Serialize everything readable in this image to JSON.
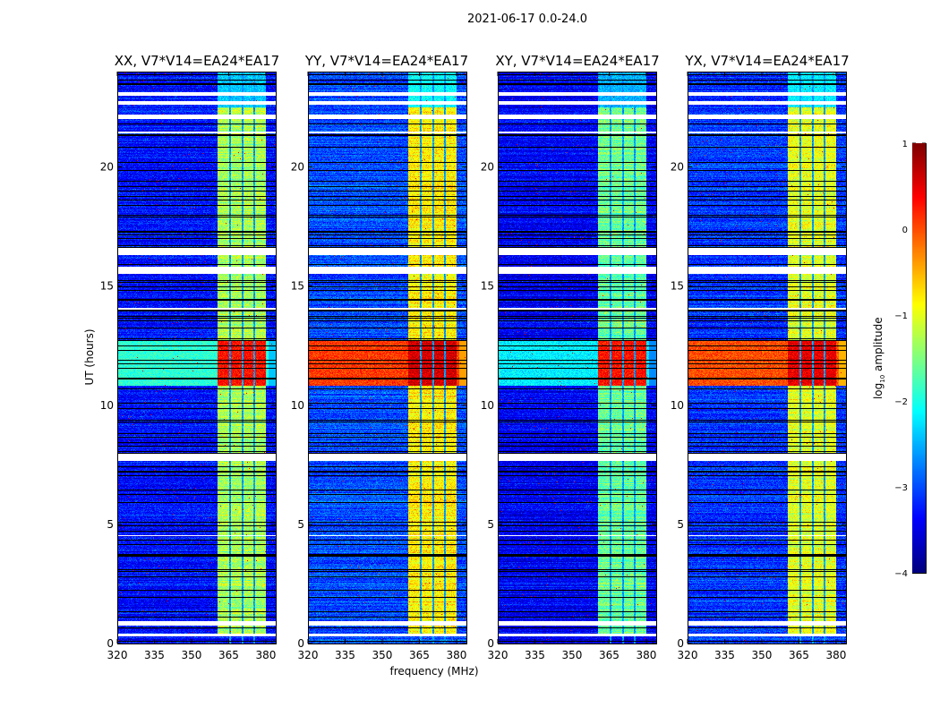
{
  "figure": {
    "suptitle": "2021-06-17 0.0-24.0"
  },
  "chart_data": {
    "type": "heatmap",
    "xlabel": "frequency (MHz)",
    "ylabel": "UT (hours)",
    "xlim": [
      320,
      384
    ],
    "ylim": [
      0,
      24
    ],
    "xticks": [
      320,
      335,
      350,
      365,
      380
    ],
    "yticks": [
      0,
      5,
      10,
      15,
      20
    ],
    "colormap": "jet",
    "colorbar": {
      "label_prefix": "log",
      "label_sub": "10",
      "label_suffix": " amplitude",
      "range": [
        -4,
        1
      ],
      "ticks": [
        1,
        0,
        -1,
        -2,
        -3,
        -4
      ],
      "tick_labels": [
        "1",
        "0",
        "−1",
        "−2",
        "−3",
        "−4"
      ]
    },
    "ytick_labels": [
      "0",
      "5",
      "10",
      "15",
      "20"
    ],
    "xtick_labels": [
      "320",
      "335",
      "350",
      "365",
      "380"
    ],
    "panels": [
      {
        "title": "XX, V7*V14=EA24*EA17",
        "background": -3.3,
        "band_level": -1.3,
        "rfi_level": -1.9,
        "rfi_band_level": 0.3
      },
      {
        "title": "YY, V7*V14=EA24*EA17",
        "background": -3.0,
        "band_level": -0.8,
        "rfi_level": 0.1,
        "rfi_band_level": 0.6
      },
      {
        "title": "XY, V7*V14=EA24*EA17",
        "background": -3.4,
        "band_level": -1.6,
        "rfi_level": -2.2,
        "rfi_band_level": 0.3
      },
      {
        "title": "YX, V7*V14=EA24*EA17",
        "background": -3.1,
        "band_level": -1.0,
        "rfi_level": 0.0,
        "rfi_band_level": 0.5
      }
    ],
    "strong_band_MHz": [
      360.5,
      380
    ],
    "channel_gaps_MHz": [
      365.6,
      370.6,
      375.3
    ],
    "rfi_hours": [
      10.8,
      12.7
    ],
    "flagged_hours": [
      [
        23.0,
        23.15
      ],
      [
        22.6,
        22.75
      ],
      [
        22.0,
        22.2
      ],
      [
        21.4,
        21.5
      ],
      [
        16.3,
        16.6
      ],
      [
        15.5,
        15.8
      ],
      [
        14.0,
        14.1
      ],
      [
        7.65,
        7.95
      ],
      [
        4.5,
        4.55
      ],
      [
        0.75,
        0.95
      ],
      [
        0.3,
        0.4
      ]
    ]
  }
}
